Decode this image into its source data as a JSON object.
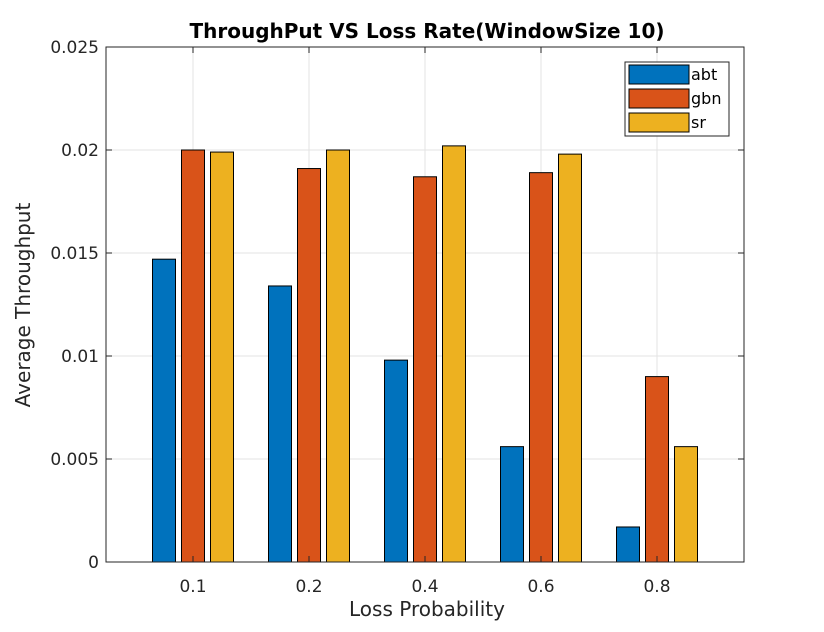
{
  "chart_data": {
    "type": "bar",
    "title": "ThroughPut VS Loss Rate(WindowSize 10)",
    "xlabel": "Loss Probability",
    "ylabel": "Average Throughput",
    "categories": [
      "0.1",
      "0.2",
      "0.4",
      "0.6",
      "0.8"
    ],
    "ylim": [
      0,
      0.025
    ],
    "yticks": [
      "0",
      "0.005",
      "0.01",
      "0.015",
      "0.02",
      "0.025"
    ],
    "grid": true,
    "legend_position": "top-right",
    "series": [
      {
        "name": "abt",
        "color": "#0072BD",
        "values": [
          0.0147,
          0.0134,
          0.0098,
          0.0056,
          0.0017
        ]
      },
      {
        "name": "gbn",
        "color": "#D95319",
        "values": [
          0.02,
          0.0191,
          0.0187,
          0.0189,
          0.009
        ]
      },
      {
        "name": "sr",
        "color": "#EDB120",
        "values": [
          0.0199,
          0.02,
          0.0202,
          0.0198,
          0.0056
        ]
      }
    ]
  }
}
